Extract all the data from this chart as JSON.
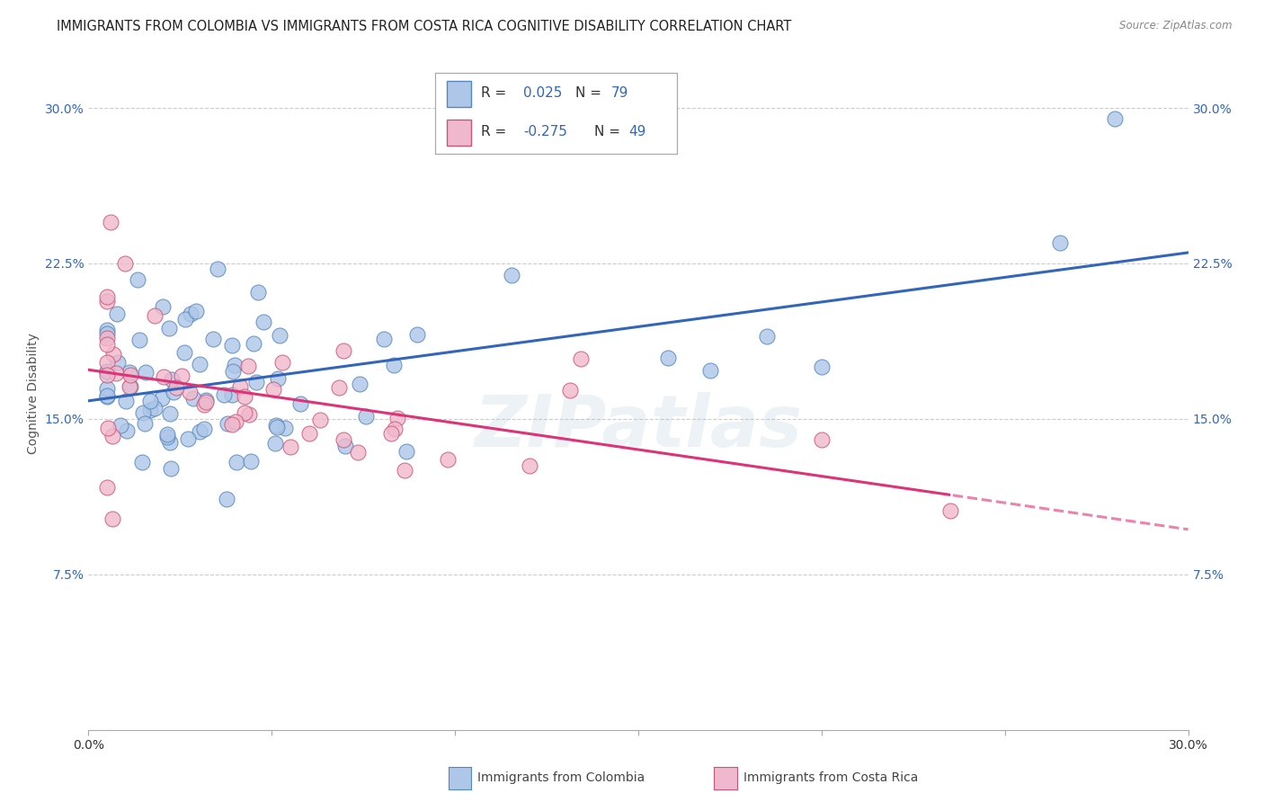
{
  "title": "IMMIGRANTS FROM COLOMBIA VS IMMIGRANTS FROM COSTA RICA COGNITIVE DISABILITY CORRELATION CHART",
  "source": "Source: ZipAtlas.com",
  "xlabel_colombia": "Immigrants from Colombia",
  "xlabel_costarica": "Immigrants from Costa Rica",
  "ylabel": "Cognitive Disability",
  "xlim": [
    0.0,
    0.3
  ],
  "ylim": [
    0.0,
    0.325
  ],
  "colombia_color": "#aec6e8",
  "colombia_edge": "#5588bb",
  "costarica_color": "#f0b8cc",
  "costarica_edge": "#cc5577",
  "trend_colombia_color": "#3366bb",
  "trend_costarica_color": "#dd3377",
  "R_colombia": 0.025,
  "N_colombia": 79,
  "R_costarica": -0.275,
  "N_costarica": 49,
  "watermark": "ZIPatlas",
  "background_color": "#ffffff",
  "grid_color": "#cccccc",
  "title_fontsize": 11,
  "axis_fontsize": 10,
  "tick_fontsize": 10
}
